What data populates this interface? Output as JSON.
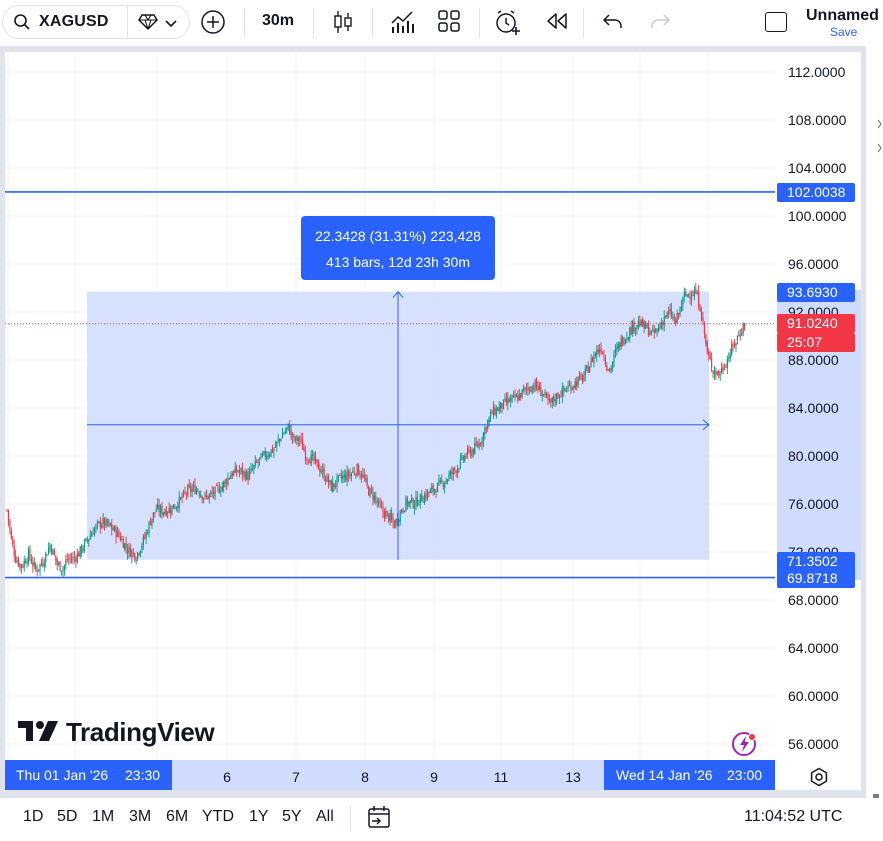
{
  "toolbar": {
    "symbol": "XAGUSD",
    "interval": "30m",
    "layout_name": "Unnamed",
    "save_label": "Save",
    "icons": [
      "search-icon",
      "diamond-icon",
      "chevron-down-icon",
      "add-symbol-icon",
      "candles-icon",
      "indicators-icon",
      "templates-icon",
      "alert-icon",
      "replay-icon",
      "undo-icon",
      "redo-icon",
      "layout-icon"
    ]
  },
  "price_scale": {
    "ticks": [
      "112.0000",
      "108.0000",
      "104.0000",
      "100.0000",
      "96.0000",
      "92.0000",
      "88.0000",
      "84.0000",
      "80.0000",
      "76.0000",
      "72.0000",
      "68.0000",
      "64.0000",
      "60.0000",
      "56.0000"
    ],
    "tags": {
      "upper_line": "102.0038",
      "range_high": "93.6930",
      "current_price": "91.0240",
      "countdown": "25:07",
      "range_low": "71.3502",
      "lower_line": "69.8718"
    }
  },
  "measure": {
    "line1": "22.3428 (31.31%) 223,428",
    "line2": "413 bars, 12d 23h 30m"
  },
  "time_axis": {
    "labels": [
      "6",
      "7",
      "8",
      "9",
      "11",
      "13"
    ],
    "start_tag_date": "Thu 01 Jan '26",
    "start_tag_time": "23:30",
    "end_tag_date": "Wed 14 Jan '26",
    "end_tag_time": "23:00"
  },
  "branding": {
    "logo_text": "TradingView"
  },
  "bottom": {
    "ranges": [
      "1D",
      "5D",
      "1M",
      "3M",
      "6M",
      "YTD",
      "1Y",
      "5Y",
      "All"
    ],
    "clock": "11:04:52 UTC"
  },
  "colors": {
    "accent": "#2962ff",
    "up": "#089981",
    "down": "#f23645",
    "range_fill": "#cfdcfd"
  },
  "chart_data": {
    "type": "candlestick",
    "series": "XAGUSD 30m",
    "ylim": [
      54,
      114
    ],
    "horizontal_lines": [
      102.0038,
      69.8718
    ],
    "price_range_measure": {
      "from": 71.3502,
      "to": 93.693,
      "change": 22.3428,
      "percent": 31.31,
      "bars": 413
    },
    "last_price": 91.024,
    "path": [
      [
        0,
        75.5
      ],
      [
        3,
        73
      ],
      [
        6,
        71.5
      ],
      [
        10,
        70.8
      ],
      [
        15,
        71.8
      ],
      [
        20,
        70.5
      ],
      [
        25,
        71.2
      ],
      [
        30,
        72.6
      ],
      [
        35,
        71
      ],
      [
        39,
        70.6
      ],
      [
        42,
        71.4
      ],
      [
        47,
        71.5
      ],
      [
        50,
        71.9
      ],
      [
        55,
        72.8
      ],
      [
        60,
        73.8
      ],
      [
        66,
        74.5
      ],
      [
        72,
        74.1
      ],
      [
        78,
        73.4
      ],
      [
        84,
        72.2
      ],
      [
        90,
        71.7
      ],
      [
        96,
        73.2
      ],
      [
        100,
        74.6
      ],
      [
        104,
        75.6
      ],
      [
        108,
        75.4
      ],
      [
        114,
        75.6
      ],
      [
        120,
        76.2
      ],
      [
        126,
        77.1
      ],
      [
        132,
        77.3
      ],
      [
        138,
        76.5
      ],
      [
        144,
        76.9
      ],
      [
        150,
        77.5
      ],
      [
        156,
        78.5
      ],
      [
        162,
        78.8
      ],
      [
        168,
        78.3
      ],
      [
        174,
        79.4
      ],
      [
        180,
        80.1
      ],
      [
        186,
        80.6
      ],
      [
        192,
        81.8
      ],
      [
        196,
        82.4
      ],
      [
        200,
        81.3
      ],
      [
        204,
        81.4
      ],
      [
        208,
        80.1
      ],
      [
        214,
        79.6
      ],
      [
        220,
        78.6
      ],
      [
        226,
        77.4
      ],
      [
        232,
        78.1
      ],
      [
        238,
        78.4
      ],
      [
        244,
        78.9
      ],
      [
        248,
        78.3
      ],
      [
        252,
        77.1
      ],
      [
        256,
        76.6
      ],
      [
        260,
        75.6
      ],
      [
        266,
        74.9
      ],
      [
        270,
        74.3
      ],
      [
        274,
        75.3
      ],
      [
        278,
        76.1
      ],
      [
        284,
        76.1
      ],
      [
        290,
        76.6
      ],
      [
        296,
        77.1
      ],
      [
        302,
        77.6
      ],
      [
        308,
        78.3
      ],
      [
        314,
        79.1
      ],
      [
        320,
        80.1
      ],
      [
        326,
        80.6
      ],
      [
        330,
        81.2
      ],
      [
        334,
        82.6
      ],
      [
        338,
        83.6
      ],
      [
        344,
        84.1
      ],
      [
        350,
        84.6
      ],
      [
        356,
        84.9
      ],
      [
        362,
        85.6
      ],
      [
        368,
        85.9
      ],
      [
        374,
        85.1
      ],
      [
        378,
        84.3
      ],
      [
        384,
        85.1
      ],
      [
        390,
        85.6
      ],
      [
        396,
        86.1
      ],
      [
        402,
        86.6
      ],
      [
        406,
        87.6
      ],
      [
        410,
        88.6
      ],
      [
        414,
        89.1
      ],
      [
        418,
        87.6
      ],
      [
        420,
        87.1
      ],
      [
        424,
        88.6
      ],
      [
        428,
        89.6
      ],
      [
        432,
        90.1
      ],
      [
        436,
        90.8
      ],
      [
        440,
        91.1
      ],
      [
        446,
        90.6
      ],
      [
        450,
        90.1
      ],
      [
        454,
        90.6
      ],
      [
        458,
        91.6
      ],
      [
        462,
        91.9
      ],
      [
        466,
        91.1
      ],
      [
        470,
        92.6
      ],
      [
        472,
        93.3
      ],
      [
        476,
        93.6
      ],
      [
        480,
        93.6
      ],
      [
        483,
        92.5
      ],
      [
        486,
        90.2
      ],
      [
        488,
        88.5
      ],
      [
        492,
        87.2
      ],
      [
        496,
        86.8
      ],
      [
        500,
        87.6
      ],
      [
        504,
        88.6
      ],
      [
        508,
        89.6
      ],
      [
        512,
        90.6
      ],
      [
        514,
        91.0
      ]
    ]
  }
}
